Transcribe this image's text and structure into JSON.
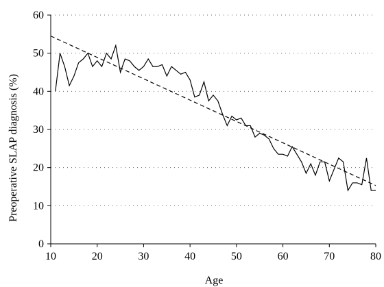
{
  "chart_data": {
    "type": "line",
    "xlabel": "Age",
    "ylabel": "Preoperative SLAP diagnosis (%)",
    "xlim": [
      10,
      80
    ],
    "ylim": [
      0,
      60
    ],
    "xticks": [
      10,
      20,
      30,
      40,
      50,
      60,
      70,
      80
    ],
    "yticks": [
      0,
      10,
      20,
      30,
      40,
      50,
      60
    ],
    "grid": "horizontal-dotted",
    "colors": {
      "line": "#000000",
      "grid": "#666666"
    },
    "series": [
      {
        "style": "solid",
        "x": [
          11,
          12,
          13,
          14,
          15,
          16,
          17,
          18,
          19,
          20,
          21,
          22,
          23,
          24,
          25,
          26,
          27,
          28,
          29,
          30,
          31,
          32,
          33,
          34,
          35,
          36,
          37,
          38,
          39,
          40,
          41,
          42,
          43,
          44,
          45,
          46,
          47,
          48,
          49,
          50,
          51,
          52,
          53,
          54,
          55,
          56,
          57,
          58,
          59,
          60,
          61,
          62,
          63,
          64,
          65,
          66,
          67,
          68,
          69,
          70,
          71,
          72,
          73,
          74,
          75,
          76,
          77,
          78,
          79,
          80
        ],
        "y": [
          40,
          50,
          46.5,
          41.5,
          44,
          47.5,
          48.5,
          50,
          46.5,
          48,
          46.5,
          50,
          48.5,
          52,
          45,
          48.5,
          48,
          46.5,
          45.5,
          46.5,
          48.5,
          46.5,
          46.5,
          47,
          44,
          46.5,
          45.5,
          44.5,
          45,
          43,
          38.5,
          39,
          42.5,
          37.5,
          39,
          37.5,
          34,
          31,
          33.5,
          32.5,
          33,
          31,
          31,
          28,
          29,
          28.5,
          27.5,
          25,
          23.5,
          23.5,
          23,
          25.5,
          23.5,
          21.5,
          18.5,
          21,
          18,
          21.5,
          21.5,
          16.5,
          19.5,
          22.5,
          21.5,
          14,
          16,
          16,
          15.5,
          22.5,
          14,
          14
        ]
      },
      {
        "style": "dashed",
        "x": [
          10,
          80
        ],
        "y": [
          54.5,
          15.3
        ]
      }
    ]
  }
}
